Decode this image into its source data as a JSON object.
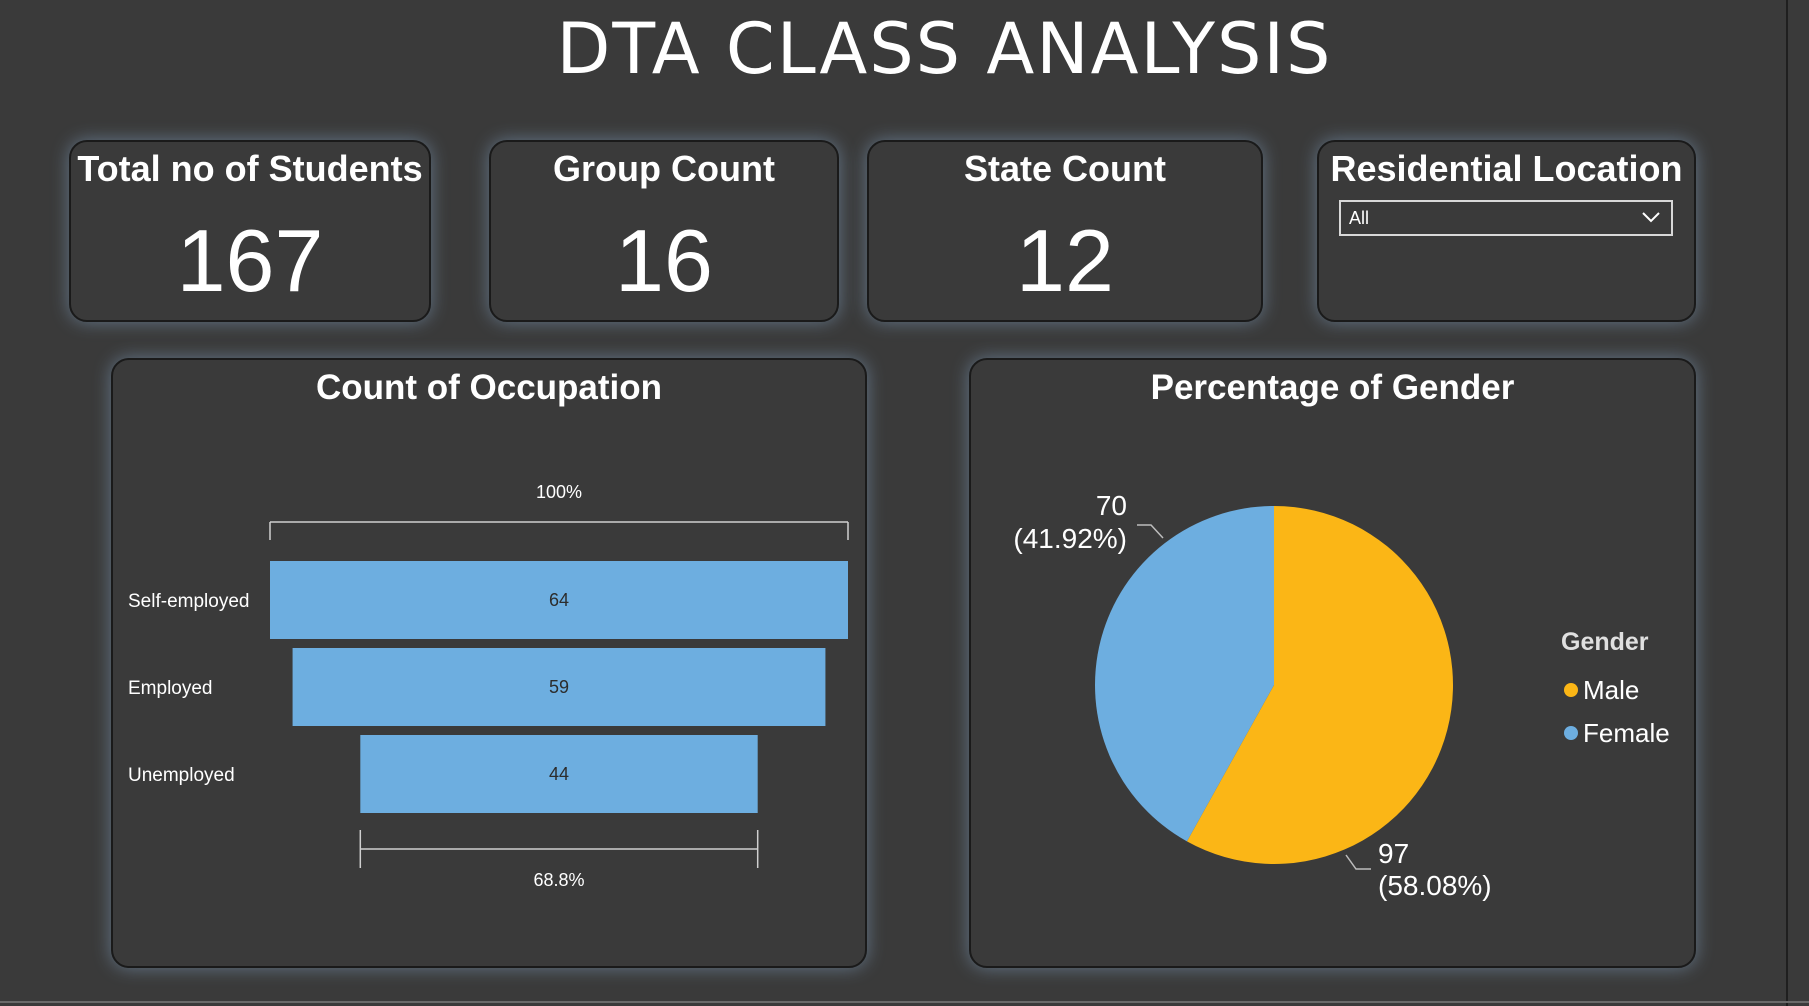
{
  "title": "DTA CLASS ANALYSIS",
  "kpis": [
    {
      "label": "Total no of Students",
      "value": "167"
    },
    {
      "label": "Group Count",
      "value": "16"
    },
    {
      "label": "State Count",
      "value": "12"
    }
  ],
  "slicer": {
    "label": "Residential Location",
    "selected": "All",
    "icon": "chevron-down-icon"
  },
  "colors": {
    "bar": "#6daee0",
    "male": "#fbb616",
    "female": "#6daee0",
    "background": "#3a3a3a"
  },
  "chart_data": [
    {
      "type": "bar",
      "title": "Count of Occupation",
      "categories": [
        "Self-employed",
        "Employed",
        "Unemployed"
      ],
      "values": [
        64,
        59,
        44
      ],
      "top_label": "100%",
      "bottom_label": "68.8%"
    },
    {
      "type": "pie",
      "title": "Percentage of Gender",
      "legend_title": "Gender",
      "legend_position": "right",
      "slices": [
        {
          "name": "Male",
          "value": 97,
          "label": "97",
          "pct_label": "(58.08%)"
        },
        {
          "name": "Female",
          "value": 70,
          "label": "70",
          "pct_label": "(41.92%)"
        }
      ]
    }
  ]
}
